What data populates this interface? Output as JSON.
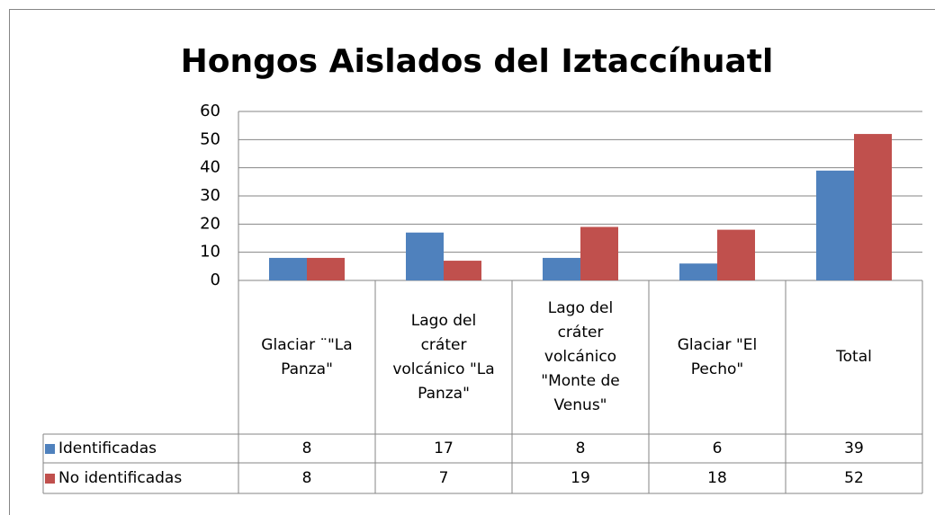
{
  "chart_data": {
    "type": "bar",
    "title": "Hongos Aislados del Iztaccíhuatl",
    "categories": [
      "Glaciar ¨\"La Panza\"",
      "Lago del cráter volcánico \"La Panza\"",
      "Lago del cráter volcánico \"Monte de Venus\"",
      "Glaciar \"El Pecho\"",
      "Total"
    ],
    "series": [
      {
        "name": "Identificadas",
        "color": "#4f81bd",
        "values": [
          8,
          17,
          8,
          6,
          39
        ]
      },
      {
        "name": "No identificadas",
        "color": "#c0504d",
        "values": [
          8,
          7,
          19,
          18,
          52
        ]
      }
    ],
    "ylim": [
      0,
      60
    ],
    "yticks": [
      0,
      10,
      20,
      30,
      40,
      50,
      60
    ],
    "grid": true,
    "data_table": true
  }
}
